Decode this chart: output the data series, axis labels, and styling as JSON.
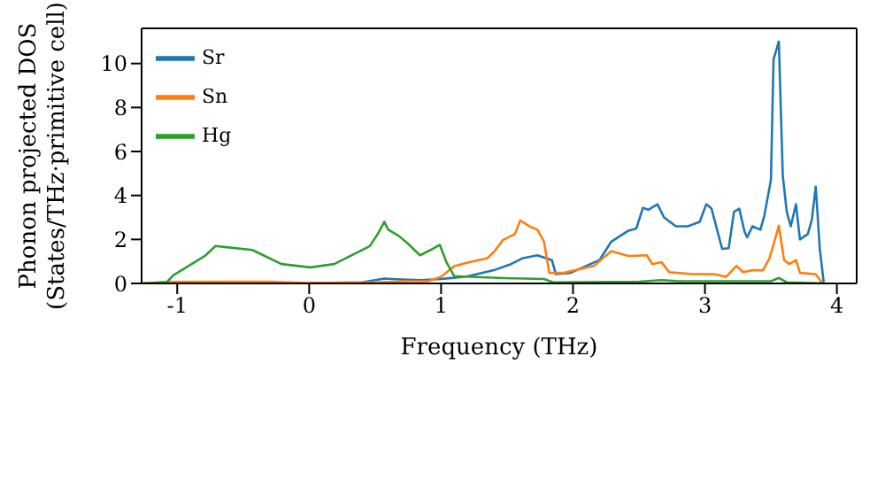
{
  "chart_data": {
    "type": "line",
    "xlabel": "Frequency (THz)",
    "ylabel": "Phonon projected DOS\n(States/THz·primitive cell)",
    "xlim": [
      -1.27,
      4.15
    ],
    "xticks": [
      -1,
      0,
      1,
      2,
      3,
      4
    ],
    "ylim": [
      0,
      11.6
    ],
    "yticks": [
      0,
      2,
      4,
      6,
      8,
      10
    ],
    "legend": "top left",
    "grid": false,
    "marker": "none",
    "line_style": "solid",
    "series": [
      {
        "name": "Sr",
        "color": "#1f77b4",
        "x": [
          0.0,
          0.4,
          0.57,
          0.7,
          0.85,
          1.0,
          1.2,
          1.4,
          1.53,
          1.62,
          1.73,
          1.84,
          1.87,
          1.98,
          2.2,
          2.29,
          2.42,
          2.48,
          2.53,
          2.57,
          2.64,
          2.69,
          2.78,
          2.87,
          2.96,
          3.01,
          3.05,
          3.13,
          3.18,
          3.22,
          3.26,
          3.3,
          3.32,
          3.36,
          3.42,
          3.45,
          3.5,
          3.52,
          3.56,
          3.59,
          3.62,
          3.65,
          3.69,
          3.72,
          3.78,
          3.81,
          3.84,
          3.87,
          3.9
        ],
        "values": [
          0.02,
          0.05,
          0.22,
          0.18,
          0.15,
          0.2,
          0.32,
          0.6,
          0.88,
          1.15,
          1.28,
          1.06,
          0.42,
          0.48,
          1.06,
          1.9,
          2.4,
          2.5,
          3.44,
          3.35,
          3.6,
          3.0,
          2.6,
          2.6,
          2.8,
          3.6,
          3.4,
          1.57,
          1.6,
          3.26,
          3.4,
          2.35,
          2.1,
          2.6,
          2.44,
          3.08,
          4.7,
          10.2,
          11.0,
          4.9,
          3.26,
          2.6,
          3.6,
          2.0,
          2.25,
          2.9,
          4.4,
          1.6,
          0.05
        ]
      },
      {
        "name": "Sn",
        "color": "#ff7f0e",
        "x": [
          -1.27,
          -1.1,
          -0.3,
          0.0,
          0.5,
          0.75,
          0.9,
          1.0,
          1.1,
          1.2,
          1.35,
          1.4,
          1.47,
          1.56,
          1.6,
          1.67,
          1.73,
          1.78,
          1.82,
          1.93,
          2.16,
          2.29,
          2.42,
          2.56,
          2.6,
          2.67,
          2.73,
          2.91,
          3.07,
          3.16,
          3.24,
          3.29,
          3.36,
          3.44,
          3.49,
          3.56,
          3.6,
          3.64,
          3.69,
          3.72,
          3.84,
          3.89
        ],
        "values": [
          0,
          0.07,
          0.08,
          0.02,
          0.05,
          0.1,
          0.1,
          0.3,
          0.79,
          0.95,
          1.15,
          1.43,
          1.98,
          2.25,
          2.86,
          2.6,
          2.44,
          1.9,
          0.48,
          0.48,
          0.8,
          1.47,
          1.25,
          1.28,
          0.88,
          0.97,
          0.51,
          0.42,
          0.42,
          0.3,
          0.8,
          0.51,
          0.6,
          0.6,
          1.15,
          2.62,
          1.06,
          0.88,
          1.06,
          0.48,
          0.42,
          0
        ]
      },
      {
        "name": "Hg",
        "color": "#2ca02c",
        "x": [
          -1.27,
          -1.08,
          -1.03,
          -0.79,
          -0.71,
          -0.43,
          -0.21,
          0.01,
          0.19,
          0.46,
          0.52,
          0.57,
          0.6,
          0.68,
          0.75,
          0.84,
          0.92,
          0.99,
          1.04,
          1.1,
          1.35,
          1.48,
          1.78,
          1.85,
          2.5,
          2.67,
          2.8,
          3.5,
          3.56,
          3.62,
          3.9
        ],
        "values": [
          0,
          0.05,
          0.37,
          1.25,
          1.7,
          1.52,
          0.88,
          0.73,
          0.88,
          1.7,
          2.25,
          2.8,
          2.44,
          2.16,
          1.8,
          1.28,
          1.52,
          1.76,
          0.97,
          0.33,
          0.27,
          0.24,
          0.2,
          0.05,
          0.08,
          0.15,
          0.1,
          0.1,
          0.25,
          0.05,
          0
        ]
      }
    ]
  }
}
